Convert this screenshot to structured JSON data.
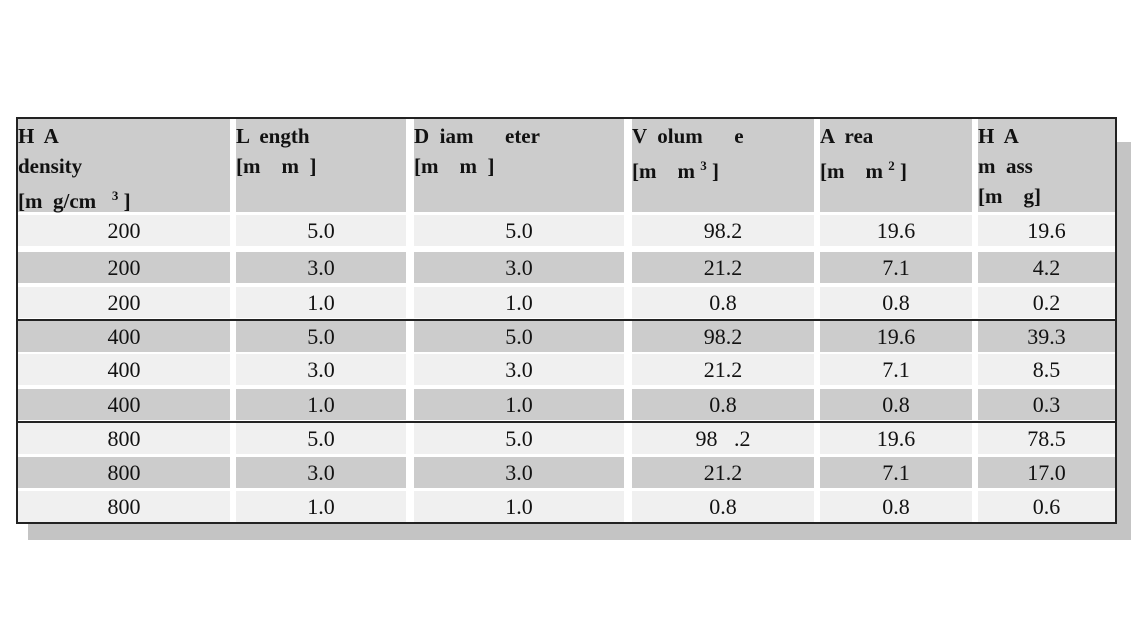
{
  "table": {
    "headers": [
      {
        "lines": [
          "H  A",
          "density",
          "[m  g/cm"
        ],
        "sup": "3",
        "tail": " ]"
      },
      {
        "lines": [
          "L  ength",
          "[m    m  ]"
        ]
      },
      {
        "lines": [
          "D  iam      eter",
          "[m    m  ]"
        ]
      },
      {
        "lines": [
          "V  olum      e"
        ],
        "last": "[m    m ",
        "sup": "3",
        "tail": " ]"
      },
      {
        "lines": [
          "A  rea"
        ],
        "last": "[m    m ",
        "sup": "2",
        "tail": " ]"
      },
      {
        "lines": [
          "H  A",
          "m  ass",
          "[m    g]"
        ]
      }
    ],
    "rows": [
      [
        "200",
        "5.0",
        "5.0",
        "98.2",
        "19.6",
        "19.6"
      ],
      [
        "200",
        "3.0",
        "3.0",
        "21.2",
        "7.1",
        "4.2"
      ],
      [
        "200",
        "1.0",
        "1.0",
        "0.8",
        "0.8",
        "0.2"
      ],
      [
        "400",
        "5.0",
        "5.0",
        "98.2",
        "19.6",
        "39.3"
      ],
      [
        "400",
        "3.0",
        "3.0",
        "21.2",
        "7.1",
        "8.5"
      ],
      [
        "400",
        "1.0",
        "1.0",
        "0.8",
        "0.8",
        "0.3"
      ],
      [
        "800",
        "5.0",
        "5.0",
        "98   .2",
        "19.6",
        "78.5"
      ],
      [
        "800",
        "3.0",
        "3.0",
        "21.2",
        "7.1",
        "17.0"
      ],
      [
        "800",
        "1.0",
        "1.0",
        "0.8",
        "0.8",
        "0.6"
      ]
    ]
  }
}
